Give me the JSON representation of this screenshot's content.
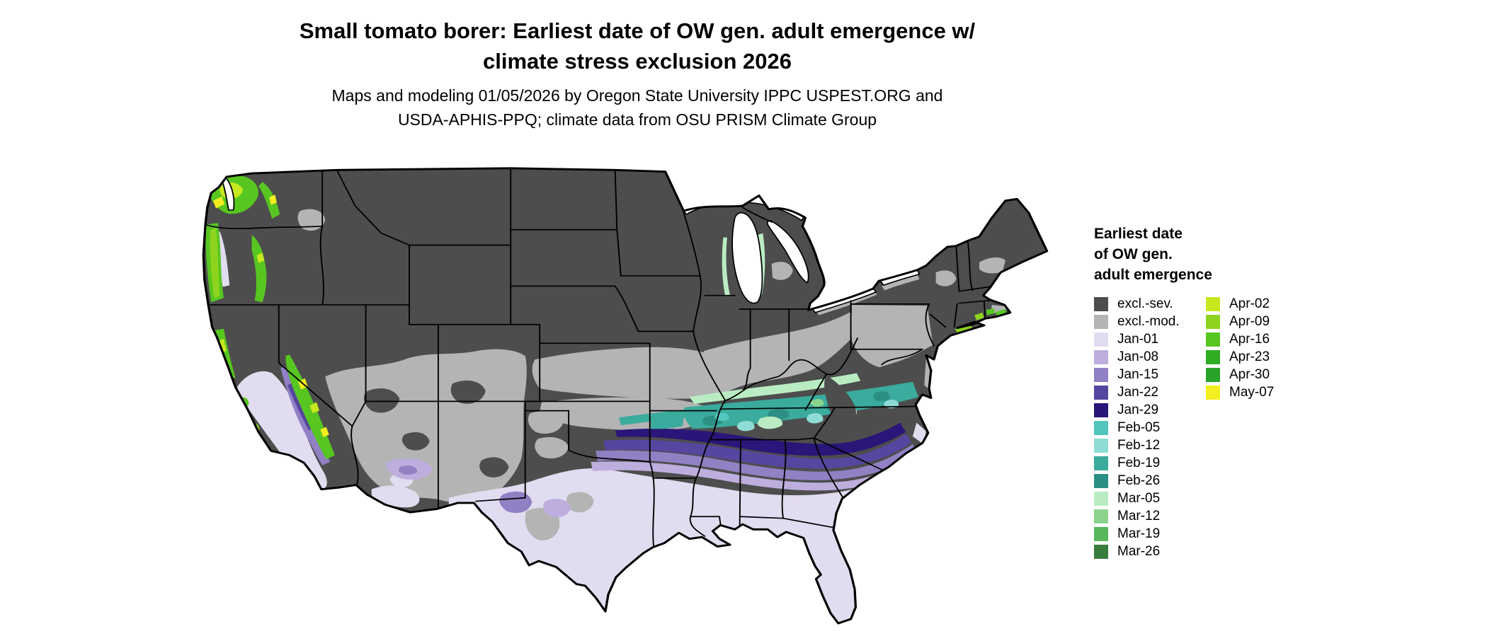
{
  "header": {
    "title_lines": [
      "Small tomato borer: Earliest date of OW gen. adult emergence w/",
      "climate stress exclusion 2026"
    ],
    "subtitle_lines": [
      "Maps and modeling 01/05/2026 by Oregon State University IPPC USPEST.ORG and",
      "USDA-APHIS-PPQ; climate data from OSU PRISM Climate Group"
    ]
  },
  "legend": {
    "title_lines": [
      "Earliest date",
      "of OW gen.",
      "adult emergence"
    ],
    "column1": [
      {
        "key": "excl_sev",
        "label": "excl.-sev."
      },
      {
        "key": "excl_mod",
        "label": "excl.-mod."
      },
      {
        "key": "jan01",
        "label": "Jan-01"
      },
      {
        "key": "jan08",
        "label": "Jan-08"
      },
      {
        "key": "jan15",
        "label": "Jan-15"
      },
      {
        "key": "jan22",
        "label": "Jan-22"
      },
      {
        "key": "jan29",
        "label": "Jan-29"
      },
      {
        "key": "feb05",
        "label": "Feb-05"
      },
      {
        "key": "feb12",
        "label": "Feb-12"
      },
      {
        "key": "feb19",
        "label": "Feb-19"
      },
      {
        "key": "feb26",
        "label": "Feb-26"
      },
      {
        "key": "mar05",
        "label": "Mar-05"
      },
      {
        "key": "mar12",
        "label": "Mar-12"
      },
      {
        "key": "mar19",
        "label": "Mar-19"
      },
      {
        "key": "mar26",
        "label": "Mar-26"
      }
    ],
    "column2": [
      {
        "key": "apr02",
        "label": "Apr-02"
      },
      {
        "key": "apr09",
        "label": "Apr-09"
      },
      {
        "key": "apr16",
        "label": "Apr-16"
      },
      {
        "key": "apr23",
        "label": "Apr-23"
      },
      {
        "key": "apr30",
        "label": "Apr-30"
      },
      {
        "key": "may07",
        "label": "May-07"
      }
    ]
  },
  "palette": {
    "excl_sev": "#4d4d4d",
    "excl_mod": "#b4b4b4",
    "jan01": "#e2dcf0",
    "jan08": "#bdaede",
    "jan15": "#9180c4",
    "jan22": "#5646a0",
    "jan29": "#2a1678",
    "feb05": "#52c5bc",
    "feb12": "#8fdcd4",
    "feb19": "#3aab9d",
    "feb26": "#2d8f84",
    "mar05": "#b9ecc2",
    "mar12": "#8cd48e",
    "mar19": "#57b75c",
    "mar26": "#397d3c",
    "apr02": "#c6e81e",
    "apr09": "#8ed41e",
    "apr16": "#57c621",
    "apr23": "#2fae24",
    "apr30": "#2aa32a",
    "may07": "#f2ee1f"
  },
  "map": {
    "area": "Continental United States choropleth",
    "pattern_notes": [
      "Dark gray (excl.-sev.) covers most of the northern and interior western US",
      "Light gray (excl.-mod.) band across the central Plains, Ohio Valley, Mid-Atlantic and Southwest highlands",
      "Teal Feb bands arc from Oklahoma through Tennessee and Kentucky to coastal Virginia",
      "Purple Jan bands run from north Texas across the Deep South into the Carolinas",
      "Pale lavender (Jan-01) covers Texas, the Gulf Coast, Florida, the Southeast coastal plain, and California valleys and coast",
      "Bright green and yellow Apr-May dates along the Pacific Northwest coast, Cascades and Sierra Nevada"
    ]
  }
}
